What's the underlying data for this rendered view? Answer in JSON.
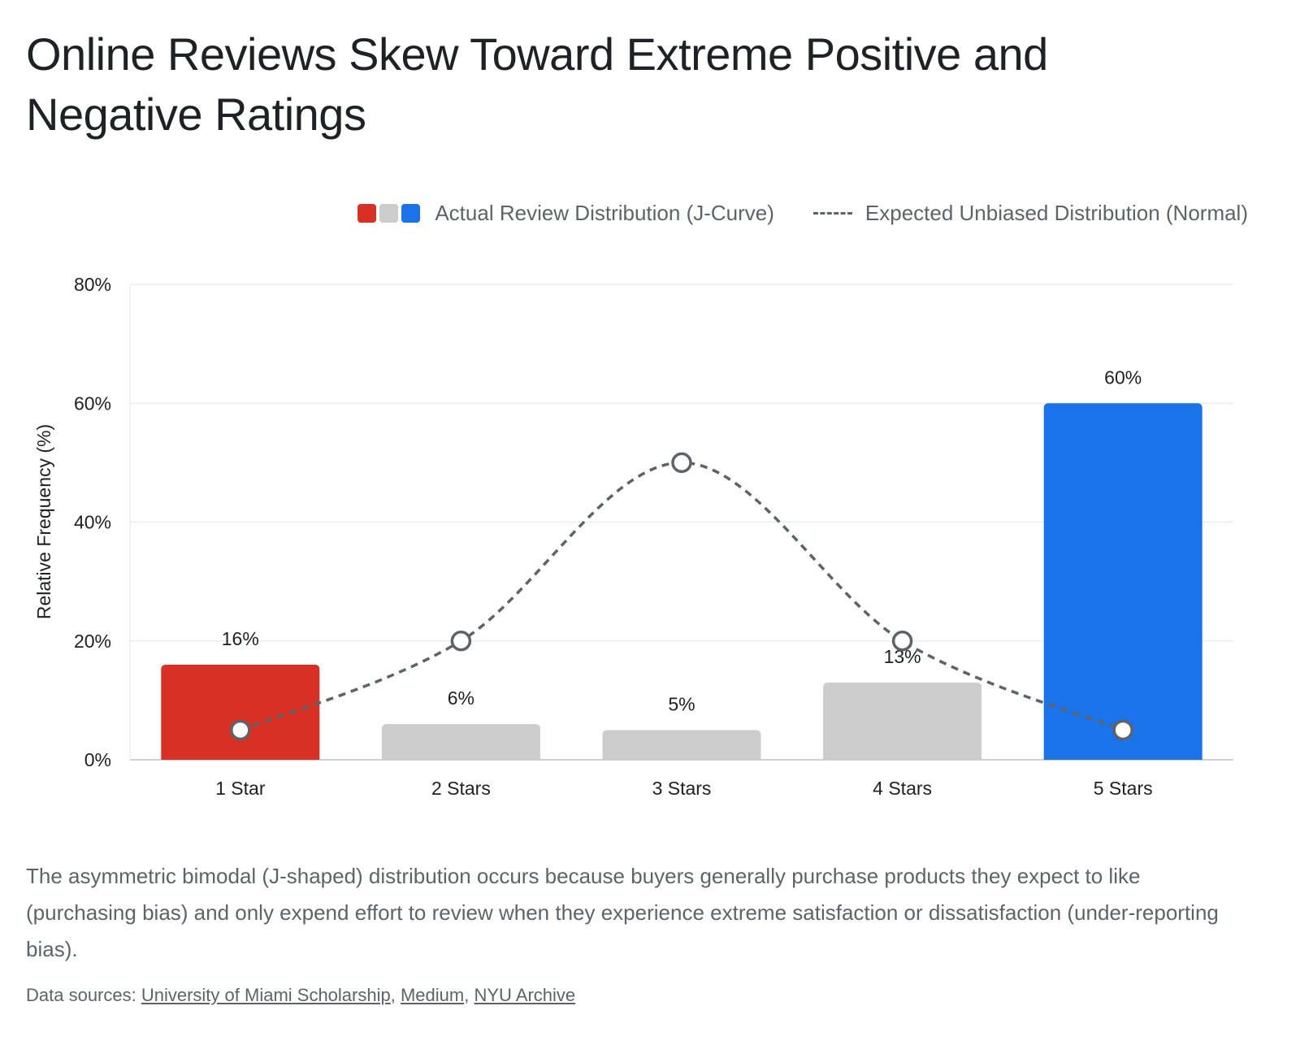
{
  "header": {
    "title": "Online Reviews Skew Toward Extreme Positive and Negative Ratings"
  },
  "legend": {
    "actual_label": "Actual Review Distribution (J-Curve)",
    "expected_label": "Expected Unbiased Distribution (Normal)"
  },
  "colors": {
    "one_star": "#d93025",
    "middle": "#cccccc",
    "five_star": "#1a73e8",
    "expected_line": "#5f6368",
    "grid": "#e8eaed"
  },
  "chart_data": {
    "type": "bar",
    "categories": [
      "1 Star",
      "2 Stars",
      "3 Stars",
      "4 Stars",
      "5 Stars"
    ],
    "series": [
      {
        "name": "Actual Review Distribution (J-Curve)",
        "type": "bar",
        "values": [
          16,
          6,
          5,
          13,
          60
        ],
        "labels": [
          "16%",
          "6%",
          "5%",
          "13%",
          "60%"
        ]
      },
      {
        "name": "Expected Unbiased Distribution (Normal)",
        "type": "line",
        "style": "dashed",
        "values": [
          5,
          20,
          50,
          20,
          5
        ]
      }
    ],
    "ylabel": "Relative Frequency (%)",
    "xlabel": "",
    "ylim": [
      0,
      80
    ],
    "yticks": [
      0,
      20,
      40,
      60,
      80
    ],
    "ytick_labels": [
      "0%",
      "20%",
      "40%",
      "60%",
      "80%"
    ],
    "grid": true,
    "legend_position": "top-right"
  },
  "footer": {
    "description": "The asymmetric bimodal (J-shaped) distribution occurs because buyers generally purchase products they expect to like (purchasing bias) and only expend effort to review when they experience extreme satisfaction or dissatisfaction (under-reporting bias).",
    "sources_prefix": "Data sources: ",
    "sources": [
      "University of Miami Scholarship",
      "Medium",
      "NYU Archive"
    ]
  }
}
